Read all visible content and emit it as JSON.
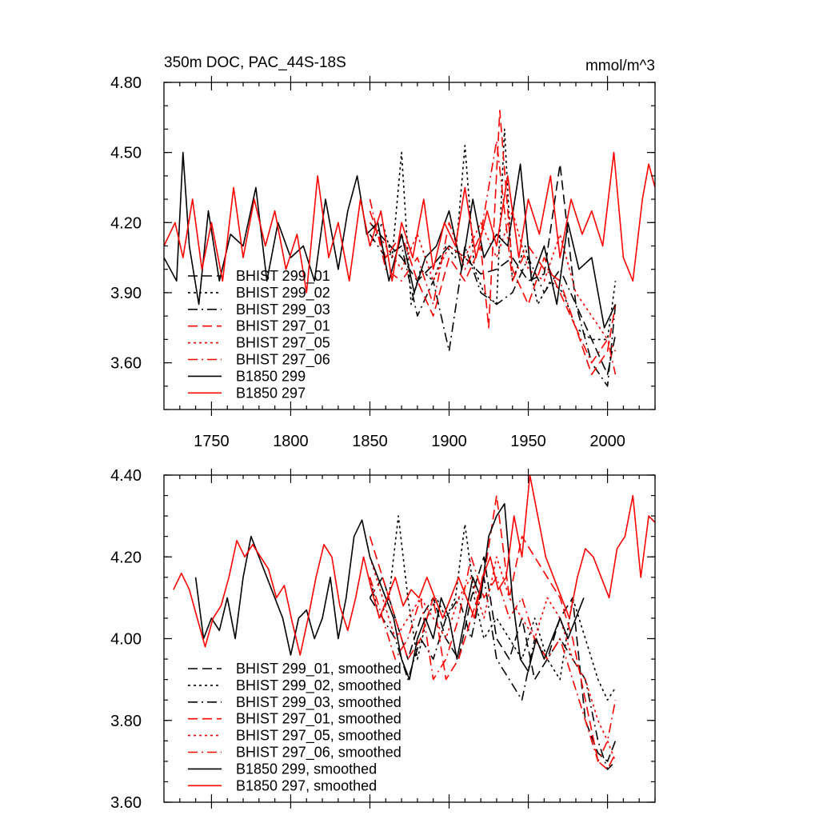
{
  "chart_data": [
    {
      "type": "line",
      "title": "350m DOC, PAC_44S-18S",
      "units": "mmol/m^3",
      "xlabel": "",
      "ylabel": "",
      "xlim": [
        1720,
        2030
      ],
      "ylim": [
        3.4,
        4.8
      ],
      "yticks": [
        "4.80",
        "4.50",
        "4.20",
        "3.90",
        "3.60"
      ],
      "xticks": [
        "1750",
        "1800",
        "1850",
        "1900",
        "1950",
        "2000"
      ],
      "legend_position": "lower-left",
      "series": [
        {
          "name": "BHIST 299_01",
          "color": "#000000",
          "dash": "dash",
          "x": [
            1850,
            1860,
            1870,
            1880,
            1890,
            1900,
            1910,
            1920,
            1930,
            1940,
            1950,
            1960,
            1970,
            1980,
            1990,
            2000,
            2005
          ],
          "y": [
            4.2,
            4.12,
            4.05,
            3.95,
            4.02,
            4.1,
            4.05,
            3.98,
            4.0,
            4.05,
            3.95,
            3.98,
            4.45,
            3.85,
            3.7,
            3.55,
            3.72
          ]
        },
        {
          "name": "BHIST 299_02",
          "color": "#000000",
          "dash": "dot",
          "x": [
            1850,
            1858,
            1864,
            1870,
            1876,
            1882,
            1890,
            1898,
            1904,
            1910,
            1916,
            1922,
            1930,
            1935,
            1940,
            1948,
            1956,
            1964,
            1972,
            1980,
            1990,
            2000,
            2005
          ],
          "y": [
            4.1,
            4.2,
            4.05,
            4.5,
            3.85,
            4.0,
            3.95,
            4.1,
            4.05,
            4.53,
            4.0,
            3.9,
            3.85,
            4.6,
            3.95,
            4.1,
            3.85,
            3.95,
            3.9,
            3.75,
            3.7,
            3.7,
            3.95
          ]
        },
        {
          "name": "BHIST 299_03",
          "color": "#000000",
          "dash": "dashdot",
          "x": [
            1850,
            1860,
            1870,
            1880,
            1890,
            1900,
            1910,
            1920,
            1930,
            1940,
            1950,
            1960,
            1970,
            1980,
            1990,
            2000,
            2005
          ],
          "y": [
            4.15,
            4.05,
            4.1,
            3.8,
            3.95,
            3.65,
            4.1,
            3.9,
            3.85,
            3.9,
            4.05,
            3.9,
            4.0,
            3.85,
            3.6,
            3.5,
            3.85
          ]
        },
        {
          "name": "BHIST 297_01",
          "color": "#ff0000",
          "dash": "dash",
          "x": [
            1850,
            1860,
            1870,
            1880,
            1890,
            1900,
            1910,
            1920,
            1925,
            1932,
            1940,
            1950,
            1960,
            1970,
            1980,
            1990,
            2000,
            2005
          ],
          "y": [
            4.25,
            4.05,
            4.15,
            3.95,
            3.8,
            4.05,
            3.95,
            4.1,
            3.75,
            4.68,
            4.0,
            3.85,
            4.05,
            3.9,
            3.75,
            3.55,
            3.65,
            3.85
          ]
        },
        {
          "name": "BHIST 297_05",
          "color": "#ff0000",
          "dash": "dot",
          "x": [
            1850,
            1860,
            1870,
            1880,
            1890,
            1900,
            1910,
            1920,
            1930,
            1940,
            1950,
            1960,
            1970,
            1980,
            1990,
            2000,
            2005
          ],
          "y": [
            4.2,
            4.1,
            4.0,
            4.15,
            3.95,
            4.1,
            4.05,
            4.2,
            4.05,
            4.25,
            4.0,
            3.95,
            4.15,
            3.9,
            3.8,
            3.7,
            3.65
          ]
        },
        {
          "name": "BHIST 297_06",
          "color": "#ff0000",
          "dash": "dashdot",
          "x": [
            1850,
            1860,
            1870,
            1880,
            1890,
            1900,
            1910,
            1920,
            1930,
            1940,
            1950,
            1960,
            1970,
            1980,
            1990,
            2000,
            2005
          ],
          "y": [
            4.3,
            4.0,
            3.95,
            4.05,
            3.85,
            4.2,
            4.0,
            4.15,
            4.55,
            3.95,
            4.1,
            4.0,
            3.95,
            3.75,
            3.6,
            3.7,
            3.55
          ]
        },
        {
          "name": "B1850 299",
          "color": "#000000",
          "dash": "solid",
          "x": [
            1720,
            1728,
            1732,
            1736,
            1742,
            1748,
            1755,
            1762,
            1770,
            1778,
            1785,
            1792,
            1800,
            1808,
            1815,
            1822,
            1830,
            1836,
            1842,
            1848,
            1855,
            1862,
            1870,
            1878,
            1885,
            1892,
            1900,
            1908,
            1915,
            1922,
            1930,
            1937,
            1945,
            1952,
            1960,
            1968,
            1975,
            1982,
            1990,
            1998,
            2005
          ],
          "y": [
            4.05,
            3.95,
            4.5,
            4.1,
            3.85,
            4.25,
            3.95,
            4.15,
            4.1,
            4.35,
            3.95,
            4.2,
            4.05,
            4.1,
            3.95,
            4.3,
            4.0,
            4.25,
            4.4,
            4.15,
            4.2,
            3.95,
            4.15,
            3.9,
            4.05,
            4.1,
            4.25,
            4.0,
            4.3,
            4.05,
            4.15,
            4.1,
            4.45,
            3.95,
            4.1,
            3.85,
            4.2,
            4.0,
            4.05,
            3.75,
            3.85
          ]
        },
        {
          "name": "B1850 297",
          "color": "#ff0000",
          "dash": "solid",
          "x": [
            1720,
            1727,
            1732,
            1738,
            1744,
            1750,
            1757,
            1764,
            1770,
            1777,
            1784,
            1790,
            1797,
            1804,
            1810,
            1817,
            1824,
            1830,
            1837,
            1844,
            1850,
            1857,
            1864,
            1870,
            1877,
            1884,
            1890,
            1897,
            1904,
            1910,
            1917,
            1924,
            1930,
            1937,
            1944,
            1950,
            1957,
            1964,
            1970,
            1977,
            1984,
            1990,
            1997,
            2004,
            2010,
            2016,
            2022,
            2026,
            2030
          ],
          "y": [
            4.1,
            4.2,
            4.05,
            4.3,
            4.0,
            4.2,
            3.95,
            4.35,
            4.05,
            4.3,
            4.1,
            4.25,
            4.0,
            4.15,
            3.9,
            4.4,
            4.05,
            4.2,
            3.95,
            4.3,
            4.1,
            4.25,
            3.95,
            4.2,
            4.05,
            4.3,
            4.0,
            4.2,
            4.1,
            4.35,
            4.05,
            4.25,
            4.1,
            4.4,
            4.05,
            4.3,
            4.15,
            4.4,
            4.05,
            4.3,
            4.15,
            4.25,
            4.1,
            4.5,
            4.05,
            3.95,
            4.3,
            4.45,
            4.35
          ]
        }
      ]
    },
    {
      "type": "line",
      "title": "",
      "xlabel": "",
      "ylabel": "",
      "xlim": [
        1720,
        2030
      ],
      "ylim": [
        3.6,
        4.4
      ],
      "yticks": [
        "4.40",
        "4.20",
        "4.00",
        "3.80",
        "3.60"
      ],
      "legend_position": "lower-left",
      "series": [
        {
          "name": "BHIST 299_01, smoothed",
          "color": "#000000",
          "dash": "dash",
          "x": [
            1850,
            1858,
            1866,
            1874,
            1882,
            1890,
            1898,
            1906,
            1914,
            1922,
            1930,
            1938,
            1946,
            1954,
            1962,
            1970,
            1978,
            1986,
            1994,
            2000,
            2005
          ],
          "y": [
            4.1,
            4.15,
            4.05,
            3.95,
            4.05,
            4.1,
            4.0,
            3.95,
            4.1,
            4.2,
            4.0,
            3.95,
            4.05,
            3.9,
            3.95,
            4.05,
            4.1,
            3.8,
            3.72,
            3.7,
            3.75
          ]
        },
        {
          "name": "BHIST 299_02, smoothed",
          "color": "#000000",
          "dash": "dot",
          "x": [
            1850,
            1856,
            1862,
            1868,
            1874,
            1880,
            1886,
            1892,
            1898,
            1904,
            1910,
            1916,
            1922,
            1930,
            1938,
            1946,
            1954,
            1962,
            1970,
            1978,
            1986,
            1994,
            2000,
            2005
          ],
          "y": [
            4.15,
            4.05,
            4.1,
            4.3,
            4.1,
            3.95,
            4.05,
            4.1,
            4.05,
            4.1,
            4.28,
            4.1,
            4.0,
            4.05,
            4.0,
            3.95,
            4.05,
            3.95,
            3.9,
            4.1,
            4.0,
            3.9,
            3.85,
            3.88
          ]
        },
        {
          "name": "BHIST 299_03, smoothed",
          "color": "#000000",
          "dash": "dashdot",
          "x": [
            1850,
            1858,
            1866,
            1874,
            1882,
            1890,
            1898,
            1906,
            1914,
            1922,
            1930,
            1938,
            1946,
            1954,
            1962,
            1970,
            1978,
            1986,
            1994,
            2000,
            2005
          ],
          "y": [
            4.1,
            4.05,
            4.0,
            3.9,
            4.0,
            3.95,
            4.05,
            4.1,
            4.0,
            4.15,
            3.95,
            3.9,
            3.85,
            4.0,
            3.95,
            4.0,
            3.95,
            3.9,
            3.75,
            3.68,
            3.7
          ]
        },
        {
          "name": "BHIST 297_01, smoothed",
          "color": "#ff0000",
          "dash": "dash",
          "x": [
            1850,
            1858,
            1866,
            1874,
            1882,
            1890,
            1898,
            1906,
            1914,
            1922,
            1930,
            1938,
            1946,
            1954,
            1962,
            1970,
            1978,
            1986,
            1994,
            2000,
            2005
          ],
          "y": [
            4.25,
            4.15,
            4.05,
            3.95,
            4.0,
            4.1,
            3.9,
            3.95,
            4.05,
            4.15,
            4.35,
            4.1,
            4.25,
            4.2,
            4.15,
            4.1,
            4.0,
            3.85,
            3.7,
            3.68,
            3.72
          ]
        },
        {
          "name": "BHIST 297_05, smoothed",
          "color": "#ff0000",
          "dash": "dot",
          "x": [
            1850,
            1858,
            1866,
            1874,
            1882,
            1890,
            1898,
            1906,
            1914,
            1922,
            1930,
            1938,
            1946,
            1954,
            1962,
            1970,
            1978,
            1986,
            1994,
            2000,
            2005
          ],
          "y": [
            4.2,
            4.1,
            4.0,
            4.05,
            4.1,
            4.05,
            4.0,
            4.1,
            4.15,
            4.05,
            4.2,
            4.1,
            4.05,
            4.0,
            4.1,
            4.05,
            3.95,
            3.9,
            3.8,
            3.75,
            3.7
          ]
        },
        {
          "name": "BHIST 297_06, smoothed",
          "color": "#ff0000",
          "dash": "dashdot",
          "x": [
            1850,
            1858,
            1866,
            1874,
            1882,
            1890,
            1898,
            1906,
            1914,
            1922,
            1930,
            1938,
            1946,
            1954,
            1962,
            1970,
            1978,
            1986,
            1994,
            2000,
            2005
          ],
          "y": [
            4.15,
            4.05,
            3.95,
            4.0,
            4.1,
            3.9,
            3.95,
            4.05,
            4.2,
            4.1,
            4.15,
            4.05,
            4.1,
            4.0,
            3.95,
            4.0,
            3.9,
            3.8,
            3.7,
            3.75,
            3.85
          ]
        },
        {
          "name": "B1850 299, smoothed",
          "color": "#000000",
          "dash": "solid",
          "x": [
            1740,
            1745,
            1750,
            1755,
            1760,
            1765,
            1770,
            1775,
            1780,
            1785,
            1790,
            1795,
            1800,
            1805,
            1810,
            1815,
            1820,
            1825,
            1830,
            1835,
            1840,
            1845,
            1850,
            1855,
            1860,
            1865,
            1870,
            1875,
            1880,
            1885,
            1890,
            1895,
            1900,
            1905,
            1910,
            1915,
            1920,
            1925,
            1930,
            1935,
            1940,
            1945,
            1950,
            1955,
            1960,
            1965,
            1970,
            1975,
            1980,
            1985
          ],
          "y": [
            4.15,
            4.0,
            4.05,
            4.02,
            4.1,
            4.0,
            4.15,
            4.25,
            4.2,
            4.15,
            4.1,
            4.05,
            3.96,
            4.05,
            4.07,
            4.0,
            4.05,
            4.15,
            4.0,
            4.1,
            4.25,
            4.29,
            4.2,
            4.15,
            4.1,
            4.05,
            3.95,
            3.9,
            4.0,
            4.05,
            4.0,
            4.1,
            4.05,
            3.95,
            4.05,
            4.15,
            4.1,
            4.25,
            4.3,
            4.33,
            4.1,
            3.95,
            3.92,
            4.0,
            3.95,
            4.0,
            4.05,
            4.0,
            4.05,
            4.1
          ]
        },
        {
          "name": "B1850 297, smoothed",
          "color": "#ff0000",
          "dash": "solid",
          "x": [
            1726,
            1731,
            1736,
            1741,
            1746,
            1751,
            1756,
            1761,
            1766,
            1771,
            1776,
            1781,
            1786,
            1791,
            1796,
            1801,
            1806,
            1811,
            1816,
            1821,
            1826,
            1831,
            1836,
            1841,
            1846,
            1851,
            1856,
            1861,
            1866,
            1871,
            1876,
            1881,
            1886,
            1891,
            1896,
            1901,
            1906,
            1911,
            1916,
            1921,
            1926,
            1931,
            1936,
            1941,
            1946,
            1951,
            1956,
            1961,
            1966,
            1971,
            1976,
            1981,
            1986,
            1991,
            1996,
            2001,
            2006,
            2011,
            2016,
            2021,
            2026,
            2031
          ],
          "y": [
            4.12,
            4.16,
            4.12,
            4.05,
            3.98,
            4.05,
            4.08,
            4.15,
            4.24,
            4.2,
            4.23,
            4.2,
            4.17,
            4.1,
            4.13,
            4.04,
            3.96,
            4.05,
            4.15,
            4.23,
            4.2,
            4.08,
            4.02,
            4.1,
            4.2,
            4.12,
            4.05,
            4.1,
            4.15,
            4.08,
            4.12,
            4.1,
            4.15,
            4.1,
            4.05,
            4.1,
            4.15,
            4.1,
            4.05,
            4.15,
            4.2,
            4.12,
            4.15,
            4.3,
            4.2,
            4.4,
            4.3,
            4.2,
            4.15,
            4.1,
            4.05,
            4.15,
            4.22,
            4.2,
            4.15,
            4.1,
            4.22,
            4.25,
            4.35,
            4.15,
            4.3,
            4.28
          ]
        }
      ]
    }
  ]
}
